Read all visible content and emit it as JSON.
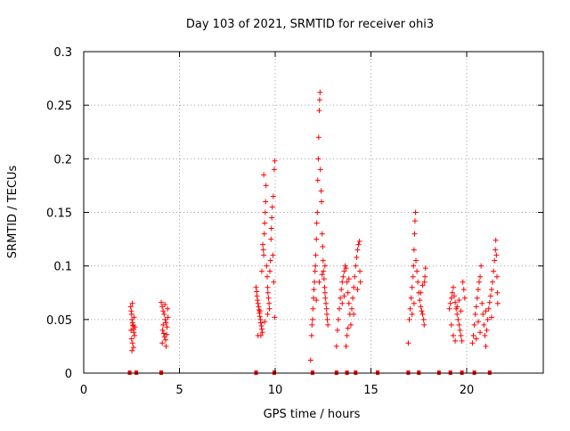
{
  "chart_data": {
    "type": "scatter",
    "title": "Day 103 of 2021, SRMTID for receiver ohi3",
    "xlabel": "GPS time / hours",
    "ylabel": "SRMTID / TECUs",
    "xlim": [
      0,
      24
    ],
    "ylim": [
      0,
      0.3
    ],
    "x_ticks": [
      0,
      5,
      10,
      15,
      20
    ],
    "y_ticks": [
      0,
      0.05,
      0.1,
      0.15,
      0.2,
      0.25,
      0.3
    ],
    "x_tick_labels": [
      "0",
      "5",
      "10",
      "15",
      "20"
    ],
    "y_tick_labels": [
      "0",
      "0.05",
      "0.1",
      "0.15",
      "0.2",
      "0.25",
      "0.3"
    ],
    "grid": true,
    "marker": "+",
    "color": "#ff0000",
    "series": [
      {
        "name": "SRMTID",
        "points": [
          [
            2.45,
            0.062
          ],
          [
            2.48,
            0.058
          ],
          [
            2.5,
            0.055
          ],
          [
            2.52,
            0.05
          ],
          [
            2.55,
            0.047
          ],
          [
            2.57,
            0.044
          ],
          [
            2.6,
            0.041
          ],
          [
            2.62,
            0.038
          ],
          [
            2.65,
            0.035
          ],
          [
            2.5,
            0.032
          ],
          [
            2.55,
            0.028
          ],
          [
            2.6,
            0.024
          ],
          [
            2.52,
            0.021
          ],
          [
            2.58,
            0.045
          ],
          [
            2.63,
            0.052
          ],
          [
            2.47,
            0.04
          ],
          [
            2.67,
            0.043
          ],
          [
            2.54,
            0.065
          ],
          [
            4.05,
            0.066
          ],
          [
            4.1,
            0.062
          ],
          [
            4.15,
            0.058
          ],
          [
            4.2,
            0.055
          ],
          [
            4.25,
            0.05
          ],
          [
            4.3,
            0.047
          ],
          [
            4.35,
            0.043
          ],
          [
            4.12,
            0.04
          ],
          [
            4.18,
            0.037
          ],
          [
            4.22,
            0.034
          ],
          [
            4.28,
            0.031
          ],
          [
            4.1,
            0.028
          ],
          [
            4.3,
            0.025
          ],
          [
            4.15,
            0.045
          ],
          [
            4.4,
            0.052
          ],
          [
            4.38,
            0.06
          ],
          [
            4.24,
            0.064
          ],
          [
            4.33,
            0.036
          ],
          [
            9.0,
            0.08
          ],
          [
            9.03,
            0.076
          ],
          [
            9.05,
            0.072
          ],
          [
            9.08,
            0.068
          ],
          [
            9.1,
            0.065
          ],
          [
            9.13,
            0.062
          ],
          [
            9.15,
            0.059
          ],
          [
            9.18,
            0.056
          ],
          [
            9.2,
            0.053
          ],
          [
            9.23,
            0.05
          ],
          [
            9.25,
            0.047
          ],
          [
            9.28,
            0.044
          ],
          [
            9.3,
            0.041
          ],
          [
            9.33,
            0.038
          ],
          [
            9.1,
            0.035
          ],
          [
            9.2,
            0.058
          ],
          [
            9.35,
            0.12
          ],
          [
            9.38,
            0.115
          ],
          [
            9.4,
            0.11
          ],
          [
            9.43,
            0.13
          ],
          [
            9.45,
            0.14
          ],
          [
            9.48,
            0.15
          ],
          [
            9.5,
            0.16
          ],
          [
            9.52,
            0.175
          ],
          [
            9.4,
            0.185
          ],
          [
            9.55,
            0.1
          ],
          [
            9.58,
            0.09
          ],
          [
            9.6,
            0.08
          ],
          [
            9.62,
            0.075
          ],
          [
            9.65,
            0.07
          ],
          [
            9.68,
            0.065
          ],
          [
            9.7,
            0.06
          ],
          [
            9.72,
            0.095
          ],
          [
            9.75,
            0.105
          ],
          [
            9.78,
            0.125
          ],
          [
            9.8,
            0.135
          ],
          [
            9.82,
            0.145
          ],
          [
            9.85,
            0.155
          ],
          [
            9.9,
            0.165
          ],
          [
            9.95,
            0.19
          ],
          [
            9.98,
            0.198
          ],
          [
            9.88,
            0.11
          ],
          [
            9.92,
            0.085
          ],
          [
            9.97,
            0.052
          ],
          [
            9.3,
            0.095
          ],
          [
            9.25,
            0.035
          ],
          [
            9.45,
            0.048
          ],
          [
            9.6,
            0.055
          ],
          [
            11.85,
            0.012
          ],
          [
            11.9,
            0.035
          ],
          [
            11.92,
            0.045
          ],
          [
            11.95,
            0.05
          ],
          [
            11.97,
            0.06
          ],
          [
            12.0,
            0.07
          ],
          [
            12.02,
            0.078
          ],
          [
            12.05,
            0.085
          ],
          [
            12.08,
            0.095
          ],
          [
            12.1,
            0.1
          ],
          [
            12.12,
            0.11
          ],
          [
            12.15,
            0.125
          ],
          [
            12.17,
            0.14
          ],
          [
            12.2,
            0.15
          ],
          [
            12.22,
            0.18
          ],
          [
            12.25,
            0.2
          ],
          [
            12.27,
            0.22
          ],
          [
            12.3,
            0.245
          ],
          [
            12.32,
            0.255
          ],
          [
            12.34,
            0.262
          ],
          [
            12.36,
            0.19
          ],
          [
            12.4,
            0.17
          ],
          [
            12.42,
            0.16
          ],
          [
            12.45,
            0.13
          ],
          [
            12.48,
            0.118
          ],
          [
            12.5,
            0.105
          ],
          [
            12.52,
            0.095
          ],
          [
            12.55,
            0.088
          ],
          [
            12.58,
            0.08
          ],
          [
            12.6,
            0.075
          ],
          [
            12.62,
            0.07
          ],
          [
            12.65,
            0.065
          ],
          [
            12.68,
            0.06
          ],
          [
            12.7,
            0.055
          ],
          [
            12.72,
            0.05
          ],
          [
            12.75,
            0.045
          ],
          [
            12.15,
            0.068
          ],
          [
            12.3,
            0.085
          ],
          [
            12.45,
            0.092
          ],
          [
            12.6,
            0.1
          ],
          [
            13.2,
            0.025
          ],
          [
            13.25,
            0.04
          ],
          [
            13.3,
            0.05
          ],
          [
            13.35,
            0.06
          ],
          [
            13.4,
            0.07
          ],
          [
            13.45,
            0.078
          ],
          [
            13.5,
            0.085
          ],
          [
            13.55,
            0.09
          ],
          [
            13.6,
            0.095
          ],
          [
            13.65,
            0.1
          ],
          [
            13.7,
            0.098
          ],
          [
            13.75,
            0.085
          ],
          [
            13.8,
            0.075
          ],
          [
            13.85,
            0.065
          ],
          [
            13.9,
            0.055
          ],
          [
            13.95,
            0.045
          ],
          [
            14.0,
            0.06
          ],
          [
            14.05,
            0.07
          ],
          [
            14.1,
            0.08
          ],
          [
            14.15,
            0.09
          ],
          [
            14.2,
            0.1
          ],
          [
            14.25,
            0.108
          ],
          [
            14.3,
            0.115
          ],
          [
            14.35,
            0.12
          ],
          [
            14.4,
            0.123
          ],
          [
            14.42,
            0.095
          ],
          [
            14.45,
            0.085
          ],
          [
            13.7,
            0.025
          ],
          [
            13.75,
            0.035
          ],
          [
            13.8,
            0.042
          ],
          [
            14.1,
            0.055
          ],
          [
            13.5,
            0.065
          ],
          [
            13.6,
            0.072
          ],
          [
            14.3,
            0.078
          ],
          [
            13.85,
            0.088
          ],
          [
            16.95,
            0.028
          ],
          [
            17.0,
            0.05
          ],
          [
            17.05,
            0.06
          ],
          [
            17.1,
            0.07
          ],
          [
            17.15,
            0.08
          ],
          [
            17.2,
            0.09
          ],
          [
            17.22,
            0.1
          ],
          [
            17.25,
            0.115
          ],
          [
            17.28,
            0.13
          ],
          [
            17.3,
            0.142
          ],
          [
            17.33,
            0.15
          ],
          [
            17.35,
            0.105
          ],
          [
            17.4,
            0.095
          ],
          [
            17.45,
            0.085
          ],
          [
            17.5,
            0.075
          ],
          [
            17.55,
            0.068
          ],
          [
            17.6,
            0.062
          ],
          [
            17.65,
            0.058
          ],
          [
            17.7,
            0.055
          ],
          [
            17.75,
            0.05
          ],
          [
            17.78,
            0.045
          ],
          [
            17.8,
            0.085
          ],
          [
            17.82,
            0.09
          ],
          [
            17.85,
            0.098
          ],
          [
            17.6,
            0.075
          ],
          [
            17.7,
            0.082
          ],
          [
            17.25,
            0.065
          ],
          [
            17.15,
            0.055
          ],
          [
            19.1,
            0.06
          ],
          [
            19.15,
            0.065
          ],
          [
            19.2,
            0.07
          ],
          [
            19.25,
            0.075
          ],
          [
            19.3,
            0.08
          ],
          [
            19.35,
            0.072
          ],
          [
            19.4,
            0.066
          ],
          [
            19.45,
            0.06
          ],
          [
            19.5,
            0.055
          ],
          [
            19.55,
            0.05
          ],
          [
            19.6,
            0.045
          ],
          [
            19.65,
            0.04
          ],
          [
            19.7,
            0.035
          ],
          [
            19.75,
            0.03
          ],
          [
            19.8,
            0.085
          ],
          [
            19.85,
            0.078
          ],
          [
            19.9,
            0.07
          ],
          [
            19.3,
            0.035
          ],
          [
            19.4,
            0.03
          ],
          [
            19.5,
            0.062
          ],
          [
            19.6,
            0.068
          ],
          [
            19.7,
            0.058
          ],
          [
            19.2,
            0.045
          ],
          [
            20.3,
            0.028
          ],
          [
            20.35,
            0.035
          ],
          [
            20.4,
            0.045
          ],
          [
            20.45,
            0.055
          ],
          [
            20.5,
            0.062
          ],
          [
            20.55,
            0.07
          ],
          [
            20.6,
            0.078
          ],
          [
            20.65,
            0.085
          ],
          [
            20.7,
            0.09
          ],
          [
            20.75,
            0.1
          ],
          [
            20.8,
            0.065
          ],
          [
            20.85,
            0.055
          ],
          [
            20.9,
            0.045
          ],
          [
            20.95,
            0.035
          ],
          [
            21.0,
            0.025
          ],
          [
            21.05,
            0.04
          ],
          [
            21.1,
            0.05
          ],
          [
            21.15,
            0.06
          ],
          [
            21.2,
            0.066
          ],
          [
            21.25,
            0.072
          ],
          [
            21.3,
            0.078
          ],
          [
            21.35,
            0.085
          ],
          [
            21.4,
            0.095
          ],
          [
            21.45,
            0.105
          ],
          [
            21.5,
            0.115
          ],
          [
            21.52,
            0.124
          ],
          [
            21.55,
            0.11
          ],
          [
            21.58,
            0.09
          ],
          [
            21.6,
            0.075
          ],
          [
            21.62,
            0.065
          ],
          [
            20.5,
            0.032
          ],
          [
            20.7,
            0.038
          ],
          [
            21.0,
            0.058
          ],
          [
            21.3,
            0.052
          ],
          [
            20.6,
            0.048
          ]
        ]
      }
    ],
    "bottom_markers_x": [
      2.4,
      2.75,
      4.05,
      9.0,
      9.95,
      11.95,
      13.2,
      13.75,
      14.2,
      15.35,
      16.95,
      17.5,
      18.55,
      19.15,
      19.75,
      20.4,
      21.2
    ]
  }
}
